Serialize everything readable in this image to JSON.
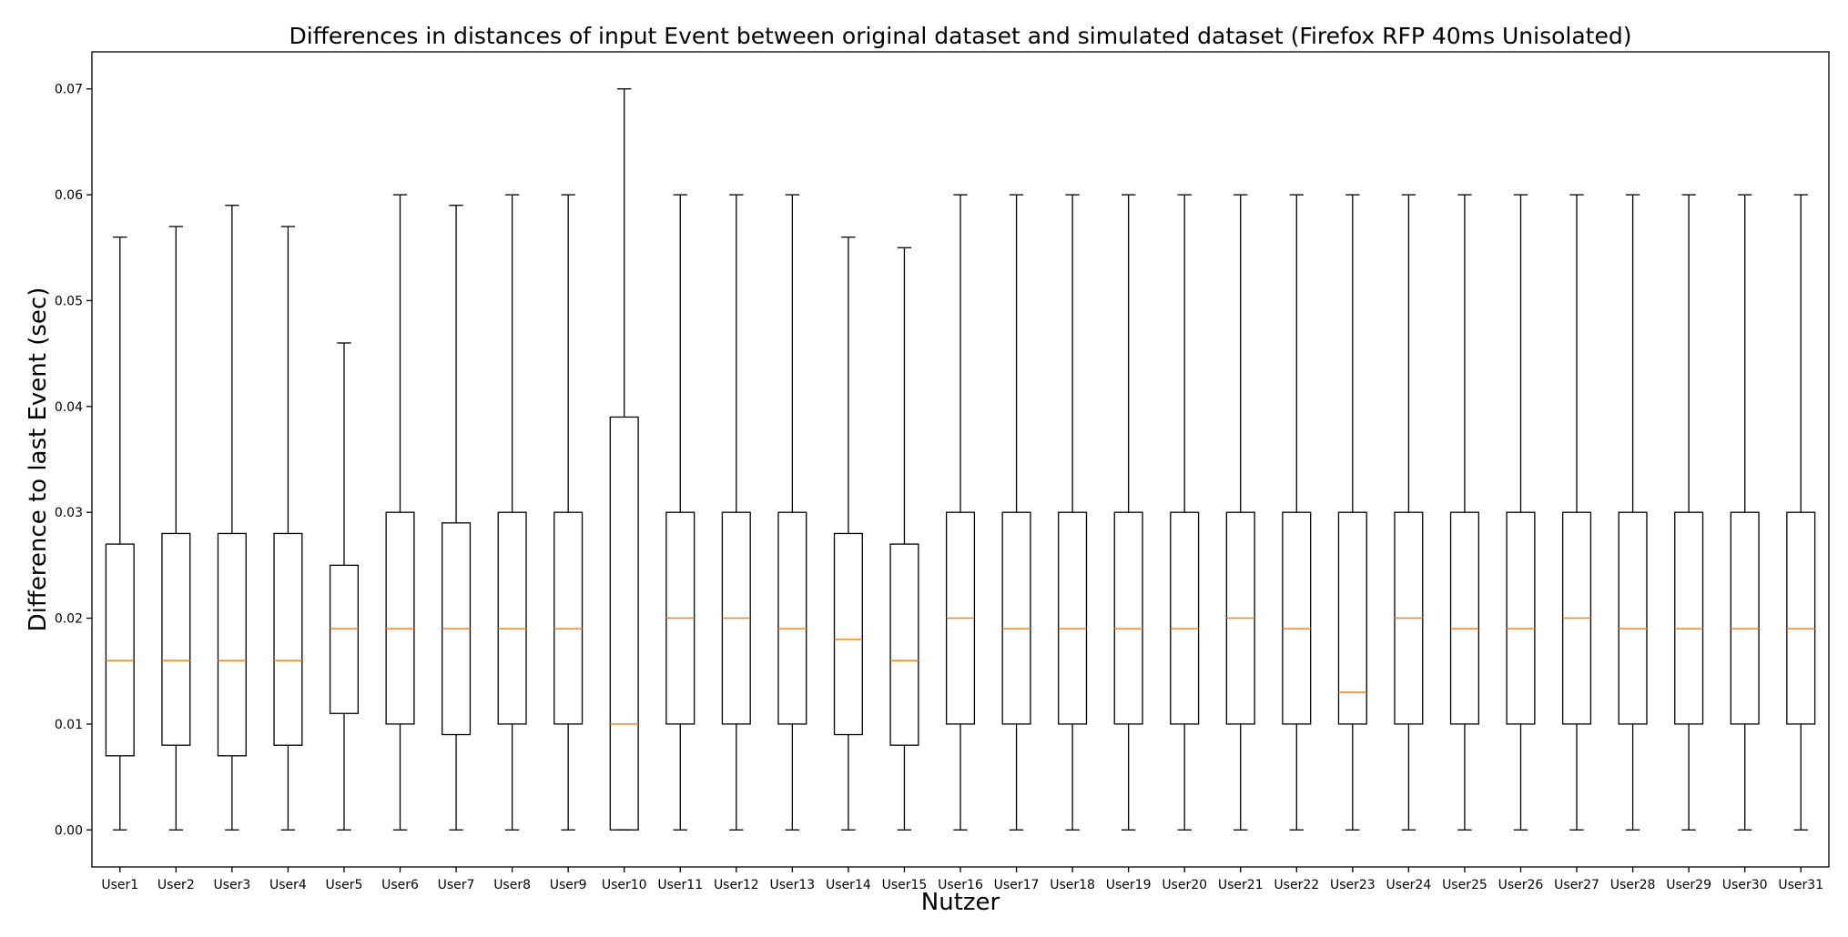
{
  "chart_data": {
    "type": "box",
    "title": "Differences in distances of input Event between original dataset and simulated dataset (Firefox RFP 40ms Unisolated)",
    "xlabel": "Nutzer",
    "ylabel": "Difference to last Event (sec)",
    "ylim": [
      -0.0035,
      0.0735
    ],
    "yticks": [
      0.0,
      0.01,
      0.02,
      0.03,
      0.04,
      0.05,
      0.06,
      0.07
    ],
    "ytick_labels": [
      "0.00",
      "0.01",
      "0.02",
      "0.03",
      "0.04",
      "0.05",
      "0.06",
      "0.07"
    ],
    "median_color": "#ff7f0e",
    "box_color": "#000000",
    "categories": [
      "User1",
      "User2",
      "User3",
      "User4",
      "User5",
      "User6",
      "User7",
      "User8",
      "User9",
      "User10",
      "User11",
      "User12",
      "User13",
      "User14",
      "User15",
      "User16",
      "User17",
      "User18",
      "User19",
      "User20",
      "User21",
      "User22",
      "User23",
      "User24",
      "User25",
      "User26",
      "User27",
      "User28",
      "User29",
      "User30",
      "User31"
    ],
    "boxes": [
      {
        "whisker_low": 0.0,
        "q1": 0.007,
        "median": 0.016,
        "q3": 0.027,
        "whisker_high": 0.056
      },
      {
        "whisker_low": 0.0,
        "q1": 0.008,
        "median": 0.016,
        "q3": 0.028,
        "whisker_high": 0.057
      },
      {
        "whisker_low": 0.0,
        "q1": 0.007,
        "median": 0.016,
        "q3": 0.028,
        "whisker_high": 0.059
      },
      {
        "whisker_low": 0.0,
        "q1": 0.008,
        "median": 0.016,
        "q3": 0.028,
        "whisker_high": 0.057
      },
      {
        "whisker_low": 0.0,
        "q1": 0.011,
        "median": 0.019,
        "q3": 0.025,
        "whisker_high": 0.046
      },
      {
        "whisker_low": 0.0,
        "q1": 0.01,
        "median": 0.019,
        "q3": 0.03,
        "whisker_high": 0.06
      },
      {
        "whisker_low": 0.0,
        "q1": 0.009,
        "median": 0.019,
        "q3": 0.029,
        "whisker_high": 0.059
      },
      {
        "whisker_low": 0.0,
        "q1": 0.01,
        "median": 0.019,
        "q3": 0.03,
        "whisker_high": 0.06
      },
      {
        "whisker_low": 0.0,
        "q1": 0.01,
        "median": 0.019,
        "q3": 0.03,
        "whisker_high": 0.06
      },
      {
        "whisker_low": 0.0,
        "q1": 0.0,
        "median": 0.01,
        "q3": 0.039,
        "whisker_high": 0.07
      },
      {
        "whisker_low": 0.0,
        "q1": 0.01,
        "median": 0.02,
        "q3": 0.03,
        "whisker_high": 0.06
      },
      {
        "whisker_low": 0.0,
        "q1": 0.01,
        "median": 0.02,
        "q3": 0.03,
        "whisker_high": 0.06
      },
      {
        "whisker_low": 0.0,
        "q1": 0.01,
        "median": 0.019,
        "q3": 0.03,
        "whisker_high": 0.06
      },
      {
        "whisker_low": 0.0,
        "q1": 0.009,
        "median": 0.018,
        "q3": 0.028,
        "whisker_high": 0.056
      },
      {
        "whisker_low": 0.0,
        "q1": 0.008,
        "median": 0.016,
        "q3": 0.027,
        "whisker_high": 0.055
      },
      {
        "whisker_low": 0.0,
        "q1": 0.01,
        "median": 0.02,
        "q3": 0.03,
        "whisker_high": 0.06
      },
      {
        "whisker_low": 0.0,
        "q1": 0.01,
        "median": 0.019,
        "q3": 0.03,
        "whisker_high": 0.06
      },
      {
        "whisker_low": 0.0,
        "q1": 0.01,
        "median": 0.019,
        "q3": 0.03,
        "whisker_high": 0.06
      },
      {
        "whisker_low": 0.0,
        "q1": 0.01,
        "median": 0.019,
        "q3": 0.03,
        "whisker_high": 0.06
      },
      {
        "whisker_low": 0.0,
        "q1": 0.01,
        "median": 0.019,
        "q3": 0.03,
        "whisker_high": 0.06
      },
      {
        "whisker_low": 0.0,
        "q1": 0.01,
        "median": 0.02,
        "q3": 0.03,
        "whisker_high": 0.06
      },
      {
        "whisker_low": 0.0,
        "q1": 0.01,
        "median": 0.019,
        "q3": 0.03,
        "whisker_high": 0.06
      },
      {
        "whisker_low": 0.0,
        "q1": 0.01,
        "median": 0.013,
        "q3": 0.03,
        "whisker_high": 0.06
      },
      {
        "whisker_low": 0.0,
        "q1": 0.01,
        "median": 0.02,
        "q3": 0.03,
        "whisker_high": 0.06
      },
      {
        "whisker_low": 0.0,
        "q1": 0.01,
        "median": 0.019,
        "q3": 0.03,
        "whisker_high": 0.06
      },
      {
        "whisker_low": 0.0,
        "q1": 0.01,
        "median": 0.019,
        "q3": 0.03,
        "whisker_high": 0.06
      },
      {
        "whisker_low": 0.0,
        "q1": 0.01,
        "median": 0.02,
        "q3": 0.03,
        "whisker_high": 0.06
      },
      {
        "whisker_low": 0.0,
        "q1": 0.01,
        "median": 0.019,
        "q3": 0.03,
        "whisker_high": 0.06
      },
      {
        "whisker_low": 0.0,
        "q1": 0.01,
        "median": 0.019,
        "q3": 0.03,
        "whisker_high": 0.06
      },
      {
        "whisker_low": 0.0,
        "q1": 0.01,
        "median": 0.019,
        "q3": 0.03,
        "whisker_high": 0.06
      },
      {
        "whisker_low": 0.0,
        "q1": 0.01,
        "median": 0.019,
        "q3": 0.03,
        "whisker_high": 0.06
      }
    ],
    "grid": false,
    "legend": "none"
  }
}
